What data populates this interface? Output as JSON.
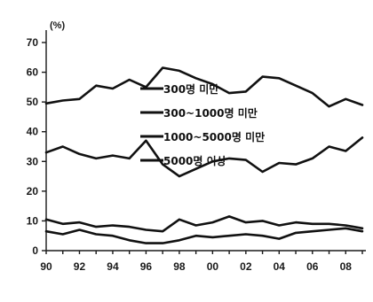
{
  "chart_data": {
    "type": "line",
    "unit_label": "(%)",
    "xlabel": "",
    "ylabel": "",
    "ylim": [
      0,
      70
    ],
    "yticks": [
      0,
      10,
      20,
      30,
      40,
      50,
      60,
      70
    ],
    "xlim": [
      1990,
      2009
    ],
    "xtick_values": [
      1990,
      1992,
      1994,
      1996,
      1998,
      2000,
      2002,
      2004,
      2006,
      2008
    ],
    "xtick_labels": [
      "90",
      "92",
      "94",
      "96",
      "98",
      "00",
      "02",
      "04",
      "06",
      "08"
    ],
    "x": [
      1990,
      1991,
      1992,
      1993,
      1994,
      1995,
      1996,
      1997,
      1998,
      1999,
      2000,
      2001,
      2002,
      2003,
      2004,
      2005,
      2006,
      2007,
      2008,
      2009
    ],
    "legend_position": "center",
    "grid": false,
    "series": [
      {
        "name": "300명 미만",
        "values": [
          49.5,
          50.5,
          51.0,
          55.5,
          54.5,
          57.5,
          55.0,
          61.5,
          60.5,
          58.0,
          56.0,
          53.0,
          53.5,
          58.5,
          58.0,
          55.5,
          53.0,
          48.5,
          51.0,
          49.0
        ]
      },
      {
        "name": "300~1000명 미만",
        "values": [
          33.0,
          35.0,
          32.5,
          31.0,
          32.0,
          31.0,
          37.0,
          29.0,
          25.0,
          27.5,
          30.0,
          31.0,
          30.5,
          26.5,
          29.5,
          29.0,
          31.0,
          35.0,
          33.5,
          38.0
        ]
      },
      {
        "name": "1000~5000명 미만",
        "values": [
          10.5,
          9.0,
          9.5,
          8.0,
          8.5,
          8.0,
          7.0,
          6.5,
          10.5,
          8.5,
          9.5,
          11.5,
          9.5,
          10.0,
          8.5,
          9.5,
          9.0,
          9.0,
          8.5,
          7.5
        ]
      },
      {
        "name": "5000명 이상",
        "values": [
          6.5,
          5.5,
          7.0,
          5.5,
          5.0,
          3.5,
          2.5,
          2.5,
          3.5,
          5.0,
          4.5,
          5.0,
          5.5,
          5.0,
          4.0,
          6.0,
          6.5,
          7.0,
          7.5,
          6.5
        ]
      }
    ]
  }
}
